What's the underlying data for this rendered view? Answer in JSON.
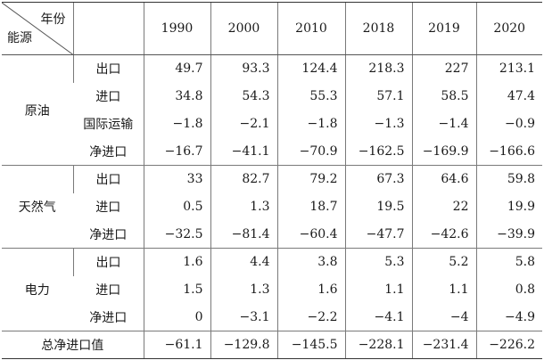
{
  "header": {
    "corner_top": "年份",
    "corner_bottom": "能源",
    "years": [
      "1990",
      "2000",
      "2010",
      "2018",
      "2019",
      "2020"
    ]
  },
  "groups": [
    {
      "name": "原油",
      "rows": [
        {
          "label": "出口",
          "values": [
            "49.7",
            "93.3",
            "124.4",
            "218.3",
            "227",
            "213.1"
          ]
        },
        {
          "label": "进口",
          "values": [
            "34.8",
            "54.3",
            "55.3",
            "57.1",
            "58.5",
            "47.4"
          ]
        },
        {
          "label": "国际运输",
          "values": [
            "−1.8",
            "−2.1",
            "−1.8",
            "−1.3",
            "−1.4",
            "−0.9"
          ]
        },
        {
          "label": "净进口",
          "values": [
            "−16.7",
            "−41.1",
            "−70.9",
            "−162.5",
            "−169.9",
            "−166.6"
          ]
        }
      ]
    },
    {
      "name": "天然气",
      "rows": [
        {
          "label": "出口",
          "values": [
            "33",
            "82.7",
            "79.2",
            "67.3",
            "64.6",
            "59.8"
          ]
        },
        {
          "label": "进口",
          "values": [
            "0.5",
            "1.3",
            "18.7",
            "19.5",
            "22",
            "19.9"
          ]
        },
        {
          "label": "净进口",
          "values": [
            "−32.5",
            "−81.4",
            "−60.4",
            "−47.7",
            "−42.6",
            "−39.9"
          ]
        }
      ]
    },
    {
      "name": "电力",
      "rows": [
        {
          "label": "出口",
          "values": [
            "1.6",
            "4.4",
            "3.8",
            "5.3",
            "5.2",
            "5.8"
          ]
        },
        {
          "label": "进口",
          "values": [
            "1.5",
            "1.3",
            "1.6",
            "1.1",
            "1.1",
            "0.8"
          ]
        },
        {
          "label": "净进口",
          "values": [
            "0",
            "−3.1",
            "−2.2",
            "−4.1",
            "−4",
            "−4.9"
          ]
        }
      ]
    }
  ],
  "total": {
    "label": "总净进口值",
    "values": [
      "−61.1",
      "−129.8",
      "−145.5",
      "−228.1",
      "−231.4",
      "−226.2"
    ]
  }
}
